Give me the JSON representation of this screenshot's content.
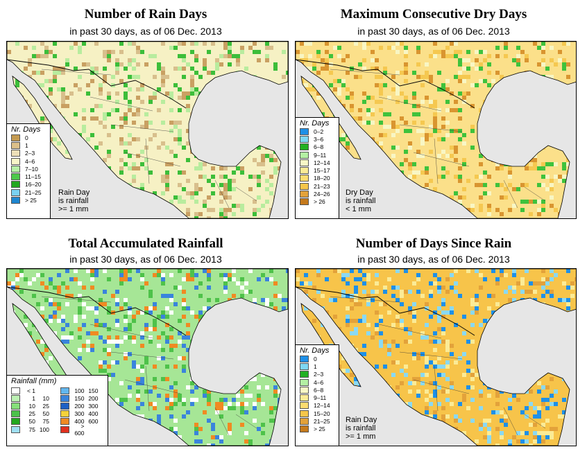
{
  "panels": [
    {
      "id": "rain_days",
      "title": "Number of Rain Days",
      "subtitle": "in past 30 days, as of  06 Dec. 2013",
      "legend_title": "Nr. Days",
      "legend": [
        {
          "label": "0",
          "color": "#c49a50"
        },
        {
          "label": "1",
          "color": "#dcc08a"
        },
        {
          "label": "2–3",
          "color": "#ede0b8"
        },
        {
          "label": "4–6",
          "color": "#f8f6c8"
        },
        {
          "label": "7–10",
          "color": "#b6f0a6"
        },
        {
          "label": "11–15",
          "color": "#4cc94a"
        },
        {
          "label": "16–20",
          "color": "#22a81e"
        },
        {
          "label": "21–25",
          "color": "#7ad2f2"
        },
        {
          "label": "> 25",
          "color": "#1e86d0"
        }
      ],
      "note": [
        "Rain Day",
        "is rainfall",
        ">= 1 mm"
      ],
      "palette": {
        "base": "#f6f1c4",
        "patch1": "#d8bf8c",
        "patch2": "#c9a062",
        "patch3": "#b8ec9e",
        "patch4": "#3cbe3a"
      }
    },
    {
      "id": "max_dry_days",
      "title": "Maximum Consecutive Dry Days",
      "subtitle": "in past 30 days, as of  06 Dec. 2013",
      "legend_title": "Nr. Days",
      "legend": [
        {
          "label": "0–2",
          "color": "#1e90e8"
        },
        {
          "label": "3–6",
          "color": "#7fd8f4"
        },
        {
          "label": "6–8",
          "color": "#22b022"
        },
        {
          "label": "9–11",
          "color": "#b4f0a4"
        },
        {
          "label": "12–14",
          "color": "#f8f8c6"
        },
        {
          "label": "15–17",
          "color": "#fbeb96"
        },
        {
          "label": "18–20",
          "color": "#fddc70"
        },
        {
          "label": "21–23",
          "color": "#f6c64a"
        },
        {
          "label": "24–26",
          "color": "#e3a23a"
        },
        {
          "label": "> 26",
          "color": "#c57a1c"
        }
      ],
      "note": [
        "Dry Day",
        "is rainfall",
        "< 1 mm"
      ],
      "palette": {
        "base": "#fbe08a",
        "patch1": "#f5c850",
        "patch2": "#d99530",
        "patch3": "#f8f6c4",
        "patch4": "#3fc23c"
      }
    },
    {
      "id": "total_rainfall",
      "title": "Total Accumulated Rainfall",
      "subtitle": "in past 30 days, as of  06 Dec. 2013",
      "legend_title": "Rainfall (mm)",
      "rain_legend": [
        {
          "lo": "< 1",
          "hi": "",
          "color": "#ffffff"
        },
        {
          "lo": "1",
          "hi": "10",
          "color": "#bdf2b4"
        },
        {
          "lo": "10",
          "hi": "25",
          "color": "#86e07a"
        },
        {
          "lo": "25",
          "hi": "50",
          "color": "#4cc24a"
        },
        {
          "lo": "50",
          "hi": "75",
          "color": "#22a81e"
        },
        {
          "lo": "75",
          "hi": "100",
          "color": "#9fe0f4"
        },
        {
          "lo": "100",
          "hi": "150",
          "color": "#62b6ee"
        },
        {
          "lo": "150",
          "hi": "200",
          "color": "#3a84dc"
        },
        {
          "lo": "200",
          "hi": "300",
          "color": "#1e5fc4"
        },
        {
          "lo": "300",
          "hi": "400",
          "color": "#f5d23a"
        },
        {
          "lo": "400",
          "hi": "600",
          "color": "#f08a22"
        },
        {
          "lo": "> 600",
          "hi": "",
          "color": "#e0301e"
        }
      ],
      "palette": {
        "base": "#a6e696",
        "patch1": "#ffffff",
        "patch2": "#4ec24a",
        "patch3": "#3a84dc",
        "patch4": "#f08a22"
      }
    },
    {
      "id": "days_since_rain",
      "title": "Number of Days Since Rain",
      "subtitle": "in past 30 days, as of  06 Dec. 2013",
      "legend_title": "Nr. Days",
      "legend": [
        {
          "label": "0",
          "color": "#1e90e8"
        },
        {
          "label": "1",
          "color": "#7fd8f4"
        },
        {
          "label": "2–3",
          "color": "#22b022"
        },
        {
          "label": "4–6",
          "color": "#b4f0a4"
        },
        {
          "label": "6–8",
          "color": "#f8f8c6"
        },
        {
          "label": "9–11",
          "color": "#fbeb96"
        },
        {
          "label": "12–14",
          "color": "#fddc70"
        },
        {
          "label": "15–20",
          "color": "#f6c64a"
        },
        {
          "label": "21–25",
          "color": "#e3a23a"
        },
        {
          "label": "> 25",
          "color": "#c57a1c"
        }
      ],
      "note": [
        "Rain Day",
        "is rainfall",
        ">= 1 mm"
      ],
      "palette": {
        "base": "#f7c44a",
        "patch1": "#e3a23a",
        "patch2": "#8ad9f4",
        "patch3": "#1e90e8",
        "patch4": "#fbeb96"
      }
    }
  ]
}
